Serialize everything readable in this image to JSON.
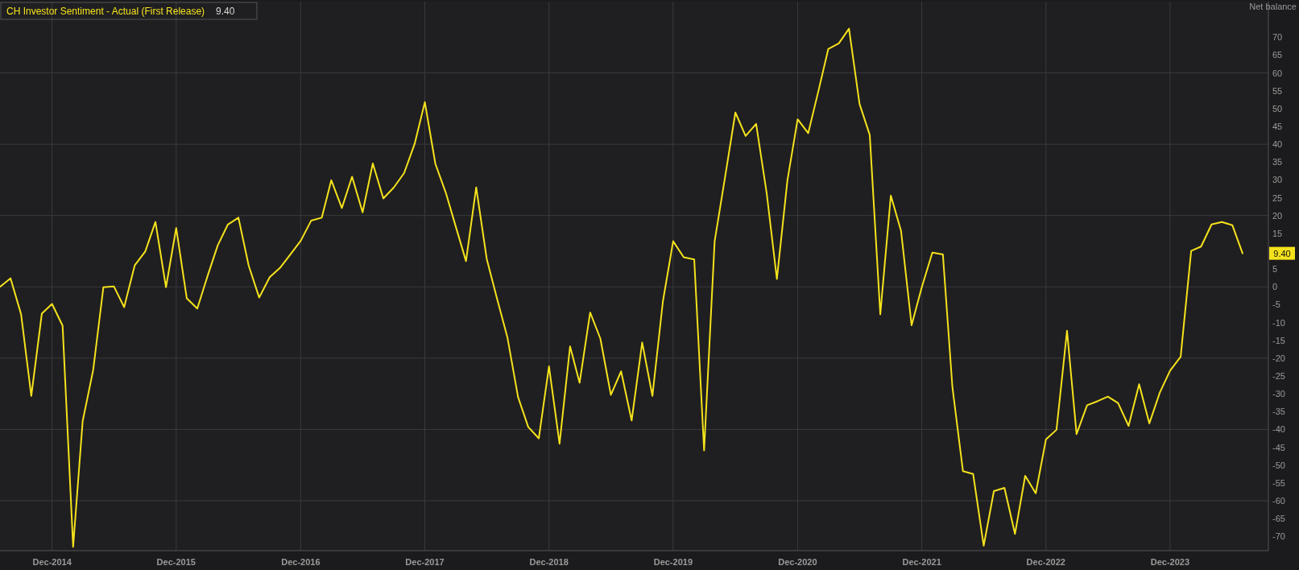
{
  "chart_data": {
    "type": "line",
    "ylabel": "Net balance",
    "legend": "top left",
    "grid": true,
    "marker": "none",
    "line_style": "solid",
    "xlim": [
      "2014-07",
      "2024-09-15"
    ],
    "xticks": [
      {
        "value": "2014-12",
        "label": "Dec-2014"
      },
      {
        "value": "2015-12",
        "label": "Dec-2015"
      },
      {
        "value": "2016-12",
        "label": "Dec-2016"
      },
      {
        "value": "2017-12",
        "label": "Dec-2017"
      },
      {
        "value": "2018-12",
        "label": "Dec-2018"
      },
      {
        "value": "2019-12",
        "label": "Dec-2019"
      },
      {
        "value": "2020-12",
        "label": "Dec-2020"
      },
      {
        "value": "2021-12",
        "label": "Dec-2021"
      },
      {
        "value": "2022-12",
        "label": "Dec-2022"
      },
      {
        "value": "2023-12",
        "label": "Dec-2023"
      }
    ],
    "ylim": [
      -74,
      80
    ],
    "yticks": [
      -70,
      -65,
      -60,
      -55,
      -50,
      -45,
      -40,
      -35,
      -30,
      -25,
      -20,
      -15,
      -10,
      -5,
      0,
      5,
      15,
      20,
      25,
      30,
      35,
      40,
      45,
      50,
      55,
      60,
      65,
      70
    ],
    "annotations": [
      "9.40",
      "9.40"
    ],
    "series": [
      {
        "name": "CH Investor Sentiment - Actual (First Release)",
        "color": "#f5e21c",
        "x": [
          "2014-07",
          "2014-08",
          "2014-09",
          "2014-10",
          "2014-11",
          "2014-12",
          "2015-01",
          "2015-02",
          "2015-03",
          "2015-04",
          "2015-05",
          "2015-06",
          "2015-07",
          "2015-08",
          "2015-09",
          "2015-10",
          "2015-11",
          "2015-12",
          "2016-01",
          "2016-02",
          "2016-03",
          "2016-04",
          "2016-05",
          "2016-06",
          "2016-07",
          "2016-08",
          "2016-09",
          "2016-10",
          "2016-11",
          "2016-12",
          "2017-01",
          "2017-02",
          "2017-03",
          "2017-04",
          "2017-05",
          "2017-06",
          "2017-07",
          "2017-08",
          "2017-09",
          "2017-10",
          "2017-11",
          "2017-12",
          "2018-01",
          "2018-02",
          "2018-03",
          "2018-04",
          "2018-05",
          "2018-06",
          "2018-07",
          "2018-08",
          "2018-09",
          "2018-10",
          "2018-11",
          "2018-12",
          "2019-01",
          "2019-02",
          "2019-03",
          "2019-04",
          "2019-05",
          "2019-06",
          "2019-07",
          "2019-08",
          "2019-09",
          "2019-10",
          "2019-11",
          "2019-12",
          "2020-01",
          "2020-02",
          "2020-03",
          "2020-04",
          "2020-05",
          "2020-06",
          "2020-07",
          "2020-08",
          "2020-09",
          "2020-10",
          "2020-11",
          "2020-12",
          "2021-01",
          "2021-02",
          "2021-03",
          "2021-04",
          "2021-05",
          "2021-06",
          "2021-07",
          "2021-08",
          "2021-09",
          "2021-10",
          "2021-11",
          "2021-12",
          "2022-01",
          "2022-02",
          "2022-03",
          "2022-04",
          "2022-05",
          "2022-06",
          "2022-07",
          "2022-08",
          "2022-09",
          "2022-10",
          "2022-11",
          "2022-12",
          "2023-01",
          "2023-02",
          "2023-03",
          "2023-04",
          "2023-05",
          "2023-06",
          "2023-07",
          "2023-08",
          "2023-09",
          "2023-10",
          "2023-11",
          "2023-12",
          "2024-01",
          "2024-02",
          "2024-03",
          "2024-04",
          "2024-05",
          "2024-06",
          "2024-07"
        ],
        "values": [
          0,
          2.4,
          -7.7,
          -30.6,
          -7.5,
          -4.8,
          -10.9,
          -72.9,
          -37.7,
          -23.3,
          -0.1,
          0.1,
          -5.7,
          6,
          9.9,
          18.2,
          -0.1,
          16.5,
          -3.2,
          -6.1,
          2.7,
          11.6,
          17.5,
          19.4,
          6,
          -3,
          2.7,
          5.3,
          9.1,
          12.9,
          18.6,
          19.4,
          29.9,
          22.1,
          30.9,
          20.9,
          34.6,
          24.8,
          27.9,
          31.9,
          40.1,
          51.8,
          34.5,
          26.3,
          17.2,
          7.2,
          27.9,
          7.8,
          -3.2,
          -14.3,
          -30.9,
          -39.3,
          -42.5,
          -22.3,
          -44,
          -16.7,
          -26.9,
          -7.2,
          -14.5,
          -30.3,
          -23.7,
          -37.5,
          -15.6,
          -30.6,
          -4,
          12.8,
          8.3,
          7.7,
          -45.9,
          12.8,
          30.4,
          48.9,
          42.3,
          45.7,
          26.3,
          2.2,
          29.9,
          47,
          43.1,
          55.3,
          66.7,
          68.3,
          72.4,
          51.3,
          42.6,
          -7.7,
          25.6,
          15.7,
          -10.8,
          -0.1,
          9.6,
          9.1,
          -28.1,
          -51.7,
          -52.5,
          -72.6,
          -57.3,
          -56.4,
          -69.3,
          -53,
          -57.9,
          -42.8,
          -40.1,
          -12.3,
          -41.3,
          -33.2,
          -32.1,
          -30.8,
          -32.6,
          -39,
          -27.3,
          -38.3,
          -29.6,
          -23.5,
          -19.6,
          10.1,
          11.3,
          17.5,
          18.2,
          17.3,
          9.4
        ]
      }
    ]
  }
}
